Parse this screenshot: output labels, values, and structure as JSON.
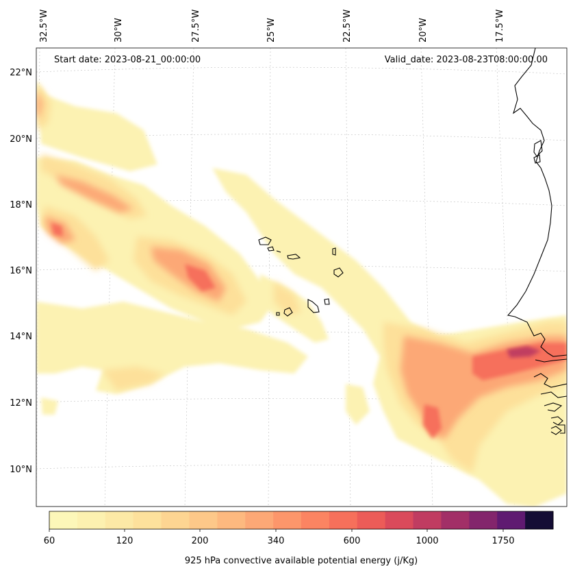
{
  "map": {
    "start_date": "Start date: 2023-08-21_00:00:00",
    "valid_date": "Valid_date: 2023-08-23T08:00:00.00",
    "lon_labels": [
      "32.5°W",
      "30°W",
      "27.5°W",
      "25°W",
      "22.5°W",
      "20°W",
      "17.5°W"
    ],
    "lat_labels": [
      "22°N",
      "20°N",
      "18°N",
      "16°N",
      "14°N",
      "12°N",
      "10°N"
    ]
  },
  "colorbar": {
    "title": "925 hPa convective available potential energy (j/Kg)",
    "tick_labels": [
      "60",
      "120",
      "200",
      "340",
      "600",
      "1000",
      "1750"
    ],
    "colors": [
      "#fcf7b9",
      "#fcf1b0",
      "#fce9a6",
      "#fde19c",
      "#fdd592",
      "#fdc889",
      "#fdb97f",
      "#fca876",
      "#fc966b",
      "#fb8462",
      "#f6705b",
      "#ec5c58",
      "#da4a5b",
      "#c03c61",
      "#a22f67",
      "#83256c",
      "#5f1a71",
      "#140d35"
    ]
  }
}
